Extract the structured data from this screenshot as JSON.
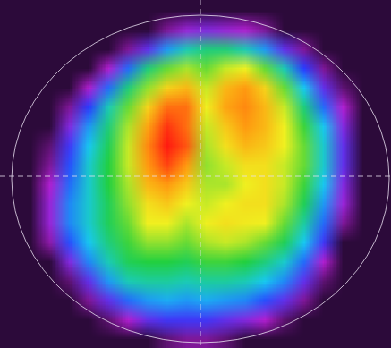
{
  "chart_data": {
    "type": "heatmap",
    "tick_labels": false,
    "zlim": [
      0,
      100
    ],
    "cells": [
      [
        0,
        0,
        0,
        0,
        0,
        0,
        0,
        0,
        0,
        0,
        0,
        0,
        0,
        0,
        0,
        0,
        0,
        0,
        0,
        0
      ],
      [
        0,
        0,
        0,
        0,
        0,
        0,
        0,
        0,
        5,
        10,
        12,
        10,
        8,
        5,
        0,
        0,
        0,
        0,
        0,
        0
      ],
      [
        0,
        0,
        0,
        0,
        0,
        0,
        5,
        15,
        30,
        40,
        45,
        45,
        40,
        30,
        15,
        5,
        0,
        0,
        0,
        0
      ],
      [
        0,
        0,
        0,
        0,
        0,
        8,
        25,
        45,
        55,
        60,
        55,
        62,
        65,
        55,
        40,
        20,
        5,
        0,
        0,
        0
      ],
      [
        0,
        0,
        0,
        0,
        8,
        25,
        45,
        58,
        70,
        75,
        62,
        75,
        80,
        70,
        55,
        35,
        15,
        3,
        0,
        0
      ],
      [
        0,
        0,
        0,
        5,
        20,
        40,
        55,
        70,
        85,
        85,
        65,
        78,
        82,
        75,
        62,
        45,
        25,
        8,
        0,
        0
      ],
      [
        0,
        0,
        0,
        12,
        30,
        45,
        60,
        78,
        92,
        85,
        62,
        72,
        80,
        75,
        65,
        52,
        35,
        12,
        0,
        0
      ],
      [
        0,
        0,
        3,
        18,
        35,
        48,
        62,
        82,
        95,
        88,
        60,
        68,
        75,
        72,
        65,
        55,
        38,
        15,
        0,
        0
      ],
      [
        0,
        0,
        5,
        22,
        38,
        50,
        62,
        80,
        90,
        80,
        58,
        62,
        68,
        68,
        62,
        55,
        38,
        15,
        0,
        0
      ],
      [
        0,
        0,
        8,
        25,
        38,
        50,
        60,
        75,
        80,
        72,
        60,
        60,
        65,
        68,
        62,
        52,
        35,
        12,
        0,
        0
      ],
      [
        0,
        0,
        10,
        28,
        38,
        48,
        58,
        68,
        72,
        65,
        62,
        65,
        68,
        68,
        60,
        48,
        30,
        10,
        0,
        0
      ],
      [
        0,
        0,
        10,
        28,
        38,
        48,
        55,
        65,
        65,
        60,
        65,
        68,
        66,
        65,
        55,
        42,
        25,
        5,
        0,
        0
      ],
      [
        0,
        0,
        6,
        22,
        35,
        45,
        52,
        58,
        58,
        55,
        60,
        62,
        60,
        55,
        48,
        35,
        18,
        0,
        0,
        0
      ],
      [
        0,
        0,
        0,
        12,
        28,
        40,
        48,
        50,
        50,
        48,
        52,
        52,
        50,
        45,
        38,
        25,
        8,
        0,
        0,
        0
      ],
      [
        0,
        0,
        0,
        3,
        15,
        30,
        40,
        42,
        42,
        40,
        42,
        42,
        40,
        35,
        28,
        15,
        3,
        0,
        0,
        0
      ],
      [
        0,
        0,
        0,
        0,
        5,
        15,
        25,
        30,
        32,
        30,
        32,
        30,
        28,
        22,
        15,
        5,
        0,
        0,
        0,
        0
      ],
      [
        0,
        0,
        0,
        0,
        0,
        3,
        8,
        15,
        18,
        18,
        18,
        15,
        12,
        8,
        3,
        0,
        0,
        0,
        0,
        0
      ],
      [
        0,
        0,
        0,
        0,
        0,
        0,
        0,
        0,
        3,
        5,
        5,
        3,
        0,
        0,
        0,
        0,
        0,
        0,
        0,
        0
      ]
    ]
  }
}
